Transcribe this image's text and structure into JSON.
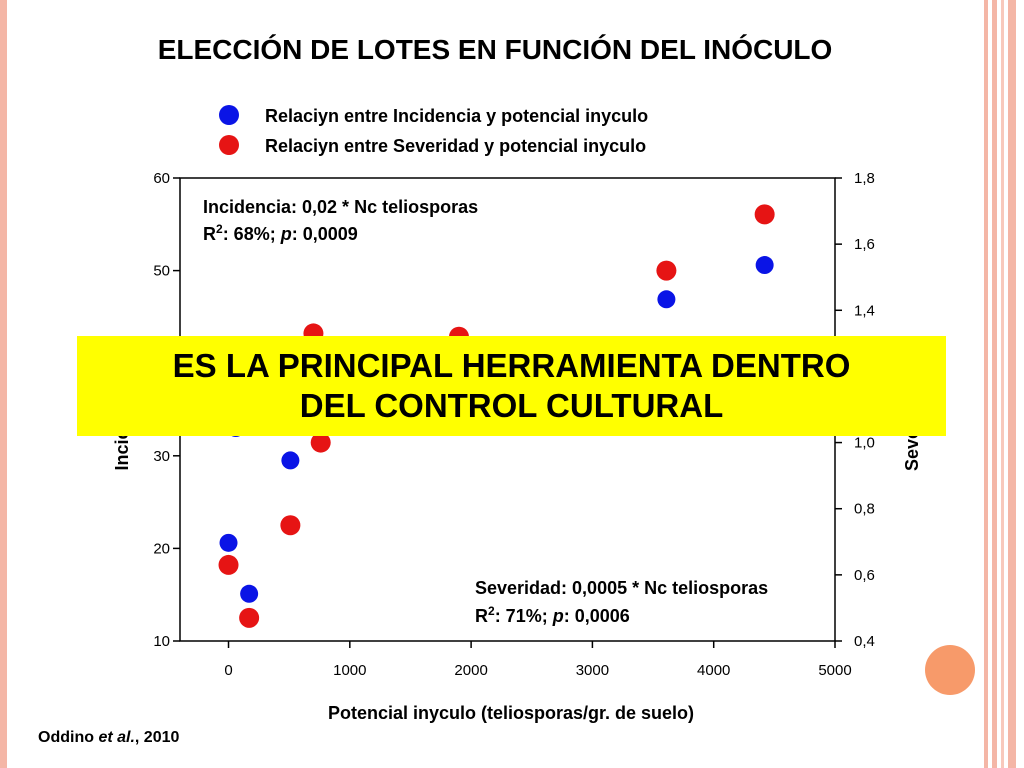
{
  "slide": {
    "title": "ELECCIÓN DE LOTES EN FUNCIÓN DEL INÓCULO",
    "banner_line1": "ES LA PRINCIPAL HERRAMIENTA DENTRO",
    "banner_line2": "DEL CONTROL CULTURAL",
    "citation_author": "Oddino ",
    "citation_etal": "et al.",
    "citation_year": ", 2010"
  },
  "colors": {
    "incidence": "#0a14e6",
    "severity": "#e61414",
    "banner": "#ffff00",
    "accent": "#f4b6a6",
    "circle": "#f79a6a"
  },
  "chart_data": {
    "type": "scatter",
    "title": "",
    "xlabel": "Potencial inyculo (teliosporas/gr. de suelo)",
    "ylabel_left": "Incic",
    "ylabel_right": "Seve",
    "xlim": [
      -400,
      5000
    ],
    "ylim_left": [
      10,
      60
    ],
    "ylim_right": [
      0.4,
      1.8
    ],
    "x_ticks": [
      "0",
      "1000",
      "2000",
      "3000",
      "4000",
      "5000"
    ],
    "y_ticks_left": [
      "10",
      "20",
      "30",
      "50",
      "60"
    ],
    "y_ticks_right": [
      "0,4",
      "0,6",
      "0,8",
      "1,0",
      "1,4",
      "1,6",
      "1,8"
    ],
    "legend": {
      "placement": "top",
      "entries": [
        "Relaciyn entre Incidencia y potencial inyculo",
        "Relaciyn entre Severidad y potencial inyculo"
      ]
    },
    "annotations": {
      "incidence_eq": "Incidencia: 0,02 * Nc teliosporas",
      "incidence_r2": "R",
      "incidence_r2_sup": "2",
      "incidence_r2_rest": ": 68%; ",
      "incidence_p": "p",
      "incidence_p_val": ": 0,0009",
      "severity_eq": "Severidad: 0,0005 * Nc teliosporas",
      "severity_r2": "R",
      "severity_r2_sup": "2",
      "severity_r2_rest": ": 71%; ",
      "severity_p": "p",
      "severity_p_val": ": 0,0006"
    },
    "series": [
      {
        "name": "Relaciyn entre Incidencia y potencial inyculo",
        "axis": "left",
        "points": [
          [
            0,
            20.6
          ],
          [
            170,
            15.1
          ],
          [
            510,
            29.5
          ],
          [
            3610,
            46.9
          ],
          [
            4420,
            50.6
          ],
          [
            60,
            33.0
          ]
        ]
      },
      {
        "name": "Relaciyn entre Severidad y potencial inyculo",
        "axis": "right",
        "points": [
          [
            0,
            0.63
          ],
          [
            170,
            0.47
          ],
          [
            510,
            0.75
          ],
          [
            760,
            1.0
          ],
          [
            700,
            1.33
          ],
          [
            1900,
            1.32
          ],
          [
            3610,
            1.52
          ],
          [
            4420,
            1.69
          ]
        ]
      }
    ]
  }
}
